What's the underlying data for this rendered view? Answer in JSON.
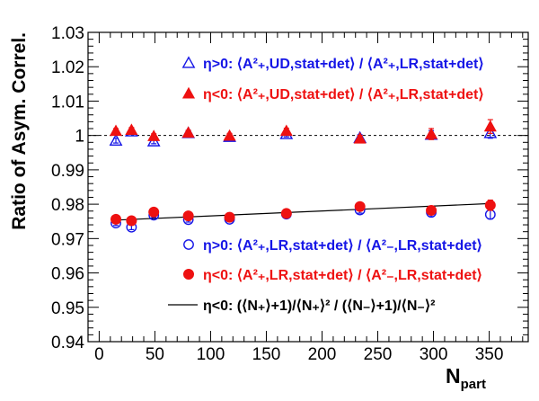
{
  "chart_data": {
    "type": "scatter",
    "xlabel": "N",
    "xlabel_sub": "part",
    "ylabel": "Ratio of Asym. Correl.",
    "xlim": [
      -10,
      385
    ],
    "ylim": [
      0.94,
      1.03
    ],
    "x_ticks": [
      0,
      50,
      100,
      150,
      200,
      250,
      300,
      350
    ],
    "x_tick_labels": [
      "0",
      "50",
      "100",
      "150",
      "200",
      "250",
      "300",
      "350"
    ],
    "y_ticks": [
      0.94,
      0.95,
      0.96,
      0.97,
      0.98,
      0.99,
      1.0,
      1.01,
      1.02,
      1.03
    ],
    "y_tick_labels": [
      "0.94",
      "0.95",
      "0.96",
      "0.97",
      "0.98",
      "0.99",
      "1",
      "1.01",
      "1.02",
      "1.03"
    ],
    "reference_line_y": 1.0,
    "series": [
      {
        "legend": "η>0: ⟨A²₊,UD,stat+det⟩ / ⟨A²₊,LR,stat+det⟩",
        "color": "#1515e6",
        "marker": "open-triangle",
        "x": [
          15,
          29,
          49,
          80,
          117,
          168,
          234,
          298,
          351
        ],
        "y": [
          0.9985,
          1.0012,
          0.9983,
          1.0007,
          0.9996,
          1.0004,
          0.9993,
          1.0002,
          1.0007
        ],
        "err": [
          0.0007,
          0.0007,
          0.0007,
          0.0007,
          0.0007,
          0.0008,
          0.0009,
          0.0012,
          0.0015
        ]
      },
      {
        "legend": "η<0: ⟨A²₊,UD,stat+det⟩ / ⟨A²₊,LR,stat+det⟩",
        "color": "#ee1111",
        "marker": "filled-triangle",
        "x": [
          15,
          29,
          49,
          80,
          117,
          168,
          234,
          298,
          351
        ],
        "y": [
          1.0013,
          1.0016,
          0.9998,
          1.0008,
          0.9999,
          1.0013,
          0.9991,
          1.0004,
          1.0026
        ],
        "err": [
          0.0007,
          0.0007,
          0.0007,
          0.0007,
          0.0007,
          0.0008,
          0.0009,
          0.0016,
          0.002
        ]
      },
      {
        "legend": "η>0: ⟨A²₊,LR,stat+det⟩ / ⟨A²₋,LR,stat+det⟩",
        "color": "#1515e6",
        "marker": "open-circle",
        "x": [
          15,
          29,
          49,
          80,
          117,
          168,
          234,
          298,
          351
        ],
        "y": [
          0.9745,
          0.9733,
          0.9768,
          0.9755,
          0.9756,
          0.9771,
          0.9783,
          0.9776,
          0.977
        ],
        "err": [
          0.0007,
          0.0007,
          0.0007,
          0.0007,
          0.0007,
          0.0008,
          0.0009,
          0.0012,
          0.0013
        ]
      },
      {
        "legend": "η<0: ⟨A²₊,LR,stat+det⟩ / ⟨A²₋,LR,stat+det⟩",
        "color": "#ee1111",
        "marker": "filled-circle",
        "x": [
          15,
          29,
          49,
          80,
          117,
          168,
          234,
          298,
          351
        ],
        "y": [
          0.9756,
          0.9752,
          0.9777,
          0.9766,
          0.9762,
          0.9773,
          0.9793,
          0.9782,
          0.9797
        ],
        "err": [
          0.0007,
          0.0007,
          0.0007,
          0.0007,
          0.0007,
          0.0008,
          0.0009,
          0.0012,
          0.0015
        ]
      }
    ],
    "fit_line": {
      "legend": "η<0: (⟨N₊⟩+1)/⟨N₊⟩² / (⟨N₋⟩+1)/⟨N₋⟩²",
      "color": "#000000",
      "x": [
        15,
        351
      ],
      "y": [
        0.97537,
        0.98019
      ]
    }
  }
}
